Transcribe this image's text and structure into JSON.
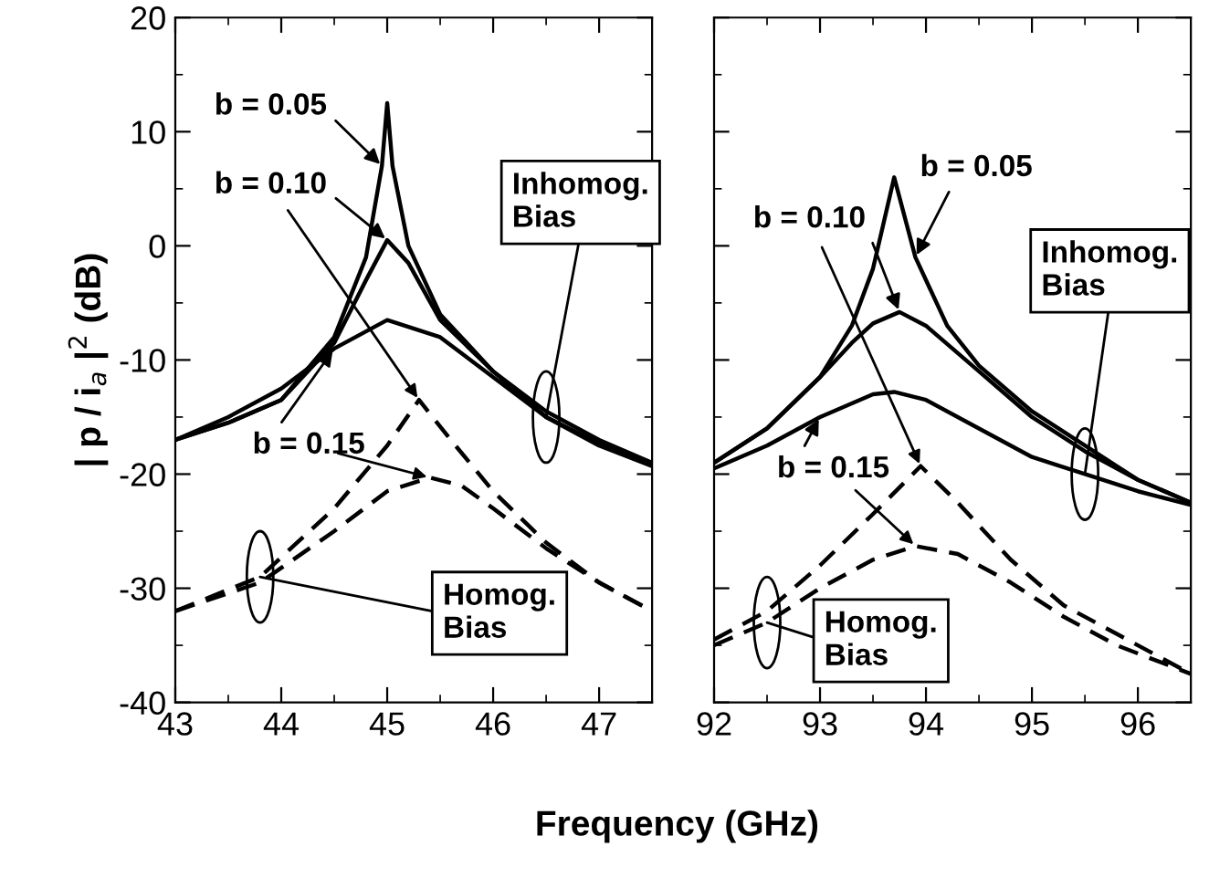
{
  "chart_data": [
    {
      "type": "line",
      "ylabel": "| p / i$_{a}$ |$^{2}$ (dB)",
      "xlabel": "Frequency (GHz)",
      "xlim": [
        43,
        47.5
      ],
      "xticks": [
        43,
        44,
        45,
        46,
        47
      ],
      "ylim": [
        -40,
        20
      ],
      "yticks": [
        -40,
        -30,
        -20,
        -10,
        0,
        10,
        20
      ],
      "grid": false,
      "legend": false,
      "marker": "none",
      "series": [
        {
          "color": "#000000",
          "line_style": "solid",
          "x": [
            43,
            43.5,
            44,
            44.5,
            44.8,
            44.95,
            45.0,
            45.05,
            45.2,
            45.5,
            46,
            46.5,
            47,
            47.5
          ],
          "values": [
            -17,
            -15.5,
            -13.5,
            -8,
            -1,
            7,
            12.5,
            7,
            0,
            -6,
            -11,
            -14.5,
            -17,
            -19
          ]
        },
        {
          "color": "#000000",
          "line_style": "solid",
          "x": [
            43,
            43.5,
            44,
            44.5,
            44.8,
            45.0,
            45.2,
            45.5,
            46,
            46.5,
            47,
            47.5
          ],
          "values": [
            -17,
            -15.5,
            -13.5,
            -8.5,
            -3,
            0.5,
            -1.5,
            -6.5,
            -11,
            -15,
            -17.3,
            -19.2
          ]
        },
        {
          "color": "#000000",
          "line_style": "solid",
          "x": [
            43,
            43.5,
            44,
            44.5,
            45.0,
            45.5,
            46,
            46.5,
            47,
            47.5
          ],
          "values": [
            -17,
            -15,
            -12.5,
            -9,
            -6.5,
            -8,
            -11.5,
            -15,
            -17.5,
            -19.3
          ]
        },
        {
          "color": "#000000",
          "line_style": "dashed",
          "x": [
            43,
            43.8,
            44.5,
            45.0,
            45.3,
            45.6,
            46,
            46.5,
            47,
            47.5
          ],
          "values": [
            -32,
            -29,
            -23,
            -17.5,
            -13.5,
            -17,
            -21.5,
            -26,
            -29.5,
            -32
          ]
        },
        {
          "color": "#000000",
          "line_style": "dashed",
          "x": [
            43,
            43.8,
            44.5,
            45.0,
            45.4,
            45.7,
            46,
            46.5,
            47,
            47.5
          ],
          "values": [
            -32,
            -29.5,
            -25,
            -21.5,
            -20.3,
            -21,
            -23,
            -26.5,
            -29.5,
            -32
          ]
        }
      ],
      "annotations": [
        {
          "text": "b = 0.05",
          "x": 44.95,
          "y": 7
        },
        {
          "text": "b = 0.10",
          "x": 45.0,
          "y": 0.5
        },
        {
          "text": "b = 0.15",
          "x": 44.5,
          "y": -9
        },
        {
          "text": "Inhomog.\nBias",
          "x": 46.5,
          "y": -15
        },
        {
          "text": "Homog.\nBias",
          "x": 43.8,
          "y": -29
        }
      ]
    },
    {
      "type": "line",
      "xlim": [
        92,
        96.5
      ],
      "xticks": [
        92,
        93,
        94,
        95,
        96
      ],
      "ylim": [
        -40,
        20
      ],
      "yticks": [
        -40,
        -30,
        -20,
        -10,
        0,
        10,
        20
      ],
      "tick_labels": "x",
      "grid": false,
      "legend": false,
      "marker": "none",
      "series": [
        {
          "color": "#000000",
          "line_style": "solid",
          "x": [
            92,
            92.5,
            93,
            93.3,
            93.5,
            93.7,
            93.9,
            94.2,
            94.5,
            95,
            95.5,
            96,
            96.5
          ],
          "values": [
            -19,
            -16,
            -11.5,
            -7,
            -2,
            6,
            -1,
            -7,
            -10.5,
            -14.5,
            -17.5,
            -20.5,
            -22.5
          ]
        },
        {
          "color": "#000000",
          "line_style": "solid",
          "x": [
            92,
            92.5,
            93,
            93.3,
            93.5,
            93.75,
            94,
            94.5,
            95,
            95.5,
            96,
            96.5
          ],
          "values": [
            -19,
            -16,
            -11.5,
            -8.5,
            -6.8,
            -5.8,
            -7,
            -11,
            -15,
            -18,
            -20.5,
            -22.5
          ]
        },
        {
          "color": "#000000",
          "line_style": "solid",
          "x": [
            92,
            92.5,
            93,
            93.5,
            93.7,
            94,
            94.5,
            95,
            95.5,
            96,
            96.5
          ],
          "values": [
            -19.5,
            -17.5,
            -15,
            -13,
            -12.8,
            -13.5,
            -16,
            -18.5,
            -20,
            -21.5,
            -22.7
          ]
        },
        {
          "color": "#000000",
          "line_style": "dashed",
          "x": [
            92,
            92.5,
            93,
            93.5,
            93.95,
            94.3,
            94.8,
            95.3,
            95.8,
            96.5
          ],
          "values": [
            -34.5,
            -32,
            -28,
            -23.5,
            -19.3,
            -22.5,
            -27.5,
            -31.5,
            -34,
            -37.5
          ]
        },
        {
          "color": "#000000",
          "line_style": "dashed",
          "x": [
            92,
            92.5,
            93,
            93.5,
            93.9,
            94.3,
            94.8,
            95.3,
            95.8,
            96.5
          ],
          "values": [
            -35,
            -33,
            -30,
            -27.5,
            -26.3,
            -27,
            -29.5,
            -32.5,
            -35,
            -37.5
          ]
        }
      ],
      "annotations": [
        {
          "text": "b = 0.05",
          "x": 93.9,
          "y": -1
        },
        {
          "text": "b = 0.10",
          "x": 93.75,
          "y": -5.8
        },
        {
          "text": "b = 0.15",
          "x": 93,
          "y": -15
        },
        {
          "text": "Inhomog.\nBias",
          "x": 95.5,
          "y": -20
        },
        {
          "text": "Homog.\nBias",
          "x": 92.5,
          "y": -33
        }
      ]
    }
  ]
}
